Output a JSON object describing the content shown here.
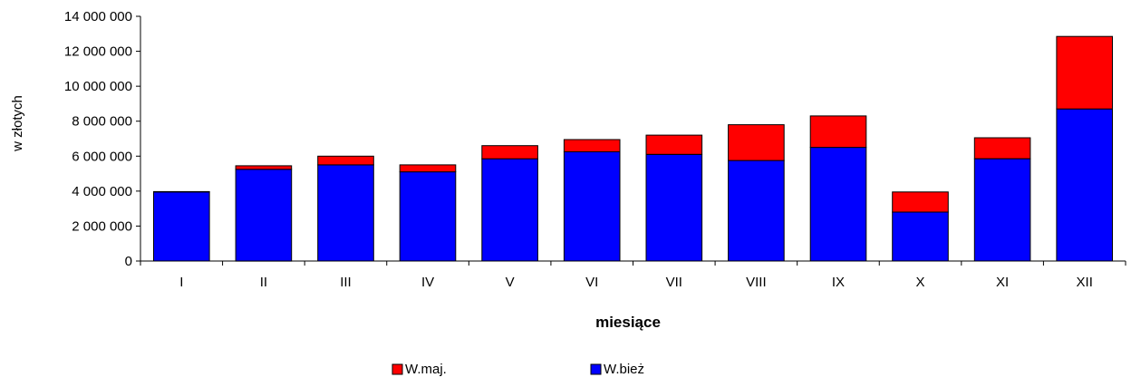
{
  "chart_data": {
    "type": "bar",
    "stacked": true,
    "title": "",
    "xlabel": "miesiące",
    "ylabel": "w złotych",
    "categories": [
      "I",
      "II",
      "III",
      "IV",
      "V",
      "VI",
      "VII",
      "VIII",
      "IX",
      "X",
      "XI",
      "XII"
    ],
    "ylim": [
      0,
      14000000
    ],
    "yticks": [
      0,
      2000000,
      4000000,
      6000000,
      8000000,
      10000000,
      12000000,
      14000000
    ],
    "ytick_labels": [
      "0",
      "2 000 000",
      "4 000 000",
      "6 000 000",
      "8 000 000",
      "10 000 000",
      "12 000 000",
      "14 000 000"
    ],
    "series": [
      {
        "name": "W.bież",
        "color": "#0000ff",
        "values": [
          3950000,
          5250000,
          5500000,
          5100000,
          5850000,
          6250000,
          6100000,
          5750000,
          6500000,
          2800000,
          5850000,
          8700000
        ]
      },
      {
        "name": "W.maj.",
        "color": "#ff0000",
        "values": [
          20000,
          200000,
          500000,
          400000,
          750000,
          700000,
          1100000,
          2050000,
          1800000,
          1150000,
          1200000,
          4150000
        ]
      }
    ],
    "legend_order": [
      "W.maj.",
      "W.bież"
    ],
    "legend_position": "bottom",
    "grid": false
  }
}
